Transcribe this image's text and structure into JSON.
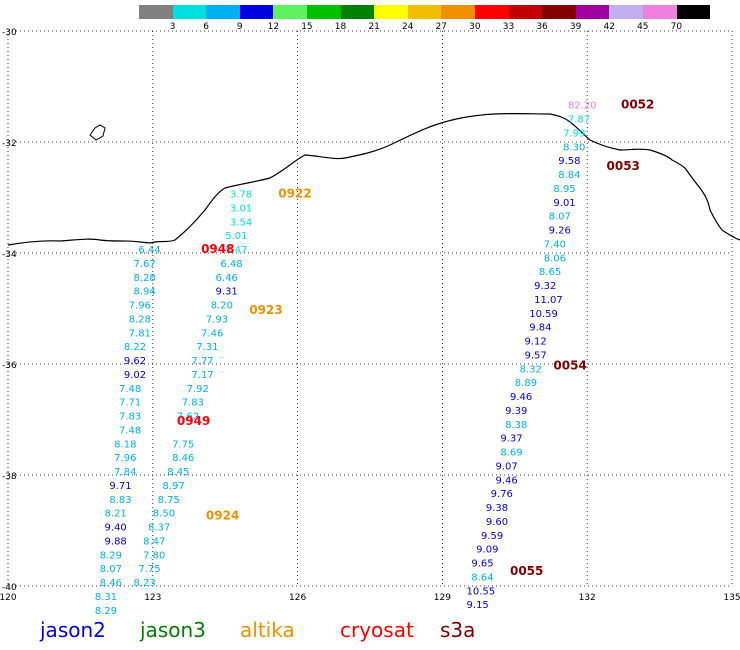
{
  "colorbar": {
    "colors": [
      "#808080",
      "#00e0e0",
      "#00b0f0",
      "#0000e0",
      "#60f060",
      "#00c000",
      "#008000",
      "#ffff00",
      "#f0c000",
      "#f09000",
      "#ff0000",
      "#c00000",
      "#800000",
      "#a000a0",
      "#c0b0f0",
      "#f080e0",
      "#000000"
    ],
    "labels": [
      "3",
      "6",
      "9",
      "12",
      "15",
      "18",
      "21",
      "24",
      "27",
      "30",
      "33",
      "36",
      "39",
      "42",
      "45",
      "70"
    ]
  },
  "axes": {
    "x_ticks": [
      "120",
      "123",
      "126",
      "129",
      "132",
      "135"
    ],
    "y_ticks": [
      "-30",
      "-32",
      "-34",
      "-36",
      "-38",
      "-40"
    ],
    "lon_range": [
      120,
      135
    ],
    "lat_range": [
      -40,
      -30
    ],
    "grid": "dotted"
  },
  "track_labels": [
    {
      "text": "0922",
      "lon": 125.6,
      "lat": -33.0,
      "color": "#f09000"
    },
    {
      "text": "0923",
      "lon": 125.0,
      "lat": -35.1,
      "color": "#f09000"
    },
    {
      "text": "0924",
      "lon": 124.1,
      "lat": -38.8,
      "color": "#f09000"
    },
    {
      "text": "0948",
      "lon": 124.0,
      "lat": -34.0,
      "color": "#ff0000"
    },
    {
      "text": "0949",
      "lon": 123.5,
      "lat": -37.1,
      "color": "#ff0000"
    },
    {
      "text": "0052",
      "lon": 132.7,
      "lat": -31.4,
      "color": "#800000"
    },
    {
      "text": "0053",
      "lon": 132.4,
      "lat": -32.5,
      "color": "#800000"
    },
    {
      "text": "0054",
      "lon": 131.3,
      "lat": -36.1,
      "color": "#800000"
    },
    {
      "text": "0055",
      "lon": 130.4,
      "lat": -39.8,
      "color": "#800000"
    }
  ],
  "value_labels": [
    {
      "text": "3.78",
      "lon": 124.6,
      "lat": -33.0,
      "color": "#00e0e0"
    },
    {
      "text": "3.01",
      "lon": 124.6,
      "lat": -33.25,
      "color": "#00e0e0"
    },
    {
      "text": "3.54",
      "lon": 124.6,
      "lat": -33.5,
      "color": "#00e0e0"
    },
    {
      "text": "5.01",
      "lon": 124.5,
      "lat": -33.75,
      "color": "#00e0e0"
    },
    {
      "text": "5.47",
      "lon": 124.5,
      "lat": -34.0,
      "color": "#00e0e0"
    },
    {
      "text": "6.48",
      "lon": 124.4,
      "lat": -34.25,
      "color": "#00b0f0"
    },
    {
      "text": "6.46",
      "lon": 124.3,
      "lat": -34.5,
      "color": "#00b0f0"
    },
    {
      "text": "9.31",
      "lon": 124.3,
      "lat": -34.75,
      "color": "#0000e0"
    },
    {
      "text": "8.20",
      "lon": 124.2,
      "lat": -35.0,
      "color": "#00b0f0"
    },
    {
      "text": "7.93",
      "lon": 124.1,
      "lat": -35.25,
      "color": "#00b0f0"
    },
    {
      "text": "7.46",
      "lon": 124.0,
      "lat": -35.5,
      "color": "#00b0f0"
    },
    {
      "text": "7.31",
      "lon": 123.9,
      "lat": -35.75,
      "color": "#00b0f0"
    },
    {
      "text": "7.77",
      "lon": 123.8,
      "lat": -36.0,
      "color": "#00b0f0"
    },
    {
      "text": "7.17",
      "lon": 123.8,
      "lat": -36.25,
      "color": "#00b0f0"
    },
    {
      "text": "7.92",
      "lon": 123.7,
      "lat": -36.5,
      "color": "#00b0f0"
    },
    {
      "text": "7.83",
      "lon": 123.6,
      "lat": -36.75,
      "color": "#00b0f0"
    },
    {
      "text": "7.62",
      "lon": 123.5,
      "lat": -37.0,
      "color": "#00b0f0"
    },
    {
      "text": "7.75",
      "lon": 123.4,
      "lat": -37.5,
      "color": "#00b0f0"
    },
    {
      "text": "8.46",
      "lon": 123.4,
      "lat": -37.75,
      "color": "#00b0f0"
    },
    {
      "text": "8.45",
      "lon": 123.3,
      "lat": -38.0,
      "color": "#00b0f0"
    },
    {
      "text": "8.97",
      "lon": 123.2,
      "lat": -38.25,
      "color": "#00b0f0"
    },
    {
      "text": "8.75",
      "lon": 123.1,
      "lat": -38.5,
      "color": "#00b0f0"
    },
    {
      "text": "8.50",
      "lon": 123.0,
      "lat": -38.75,
      "color": "#00b0f0"
    },
    {
      "text": "8.37",
      "lon": 122.9,
      "lat": -39.0,
      "color": "#00b0f0"
    },
    {
      "text": "8.47",
      "lon": 122.8,
      "lat": -39.25,
      "color": "#00b0f0"
    },
    {
      "text": "7.80",
      "lon": 122.8,
      "lat": -39.5,
      "color": "#00b0f0"
    },
    {
      "text": "7.75",
      "lon": 122.7,
      "lat": -39.75,
      "color": "#00b0f0"
    },
    {
      "text": "8.23",
      "lon": 122.6,
      "lat": -40.0,
      "color": "#00b0f0"
    },
    {
      "text": "6.44",
      "lon": 122.7,
      "lat": -34.0,
      "color": "#00b0f0"
    },
    {
      "text": "7.67",
      "lon": 122.6,
      "lat": -34.25,
      "color": "#00b0f0"
    },
    {
      "text": "8.28",
      "lon": 122.6,
      "lat": -34.5,
      "color": "#00b0f0"
    },
    {
      "text": "8.94",
      "lon": 122.6,
      "lat": -34.75,
      "color": "#00b0f0"
    },
    {
      "text": "7.96",
      "lon": 122.5,
      "lat": -35.0,
      "color": "#00b0f0"
    },
    {
      "text": "8.28",
      "lon": 122.5,
      "lat": -35.25,
      "color": "#00b0f0"
    },
    {
      "text": "7.81",
      "lon": 122.5,
      "lat": -35.5,
      "color": "#00b0f0"
    },
    {
      "text": "8.22",
      "lon": 122.4,
      "lat": -35.75,
      "color": "#00b0f0"
    },
    {
      "text": "9.62",
      "lon": 122.4,
      "lat": -36.0,
      "color": "#0000e0"
    },
    {
      "text": "9.02",
      "lon": 122.4,
      "lat": -36.25,
      "color": "#0000e0"
    },
    {
      "text": "7.48",
      "lon": 122.3,
      "lat": -36.5,
      "color": "#00b0f0"
    },
    {
      "text": "7.71",
      "lon": 122.3,
      "lat": -36.75,
      "color": "#00b0f0"
    },
    {
      "text": "7.83",
      "lon": 122.3,
      "lat": -37.0,
      "color": "#00b0f0"
    },
    {
      "text": "7.48",
      "lon": 122.3,
      "lat": -37.25,
      "color": "#00b0f0"
    },
    {
      "text": "8.18",
      "lon": 122.2,
      "lat": -37.5,
      "color": "#00b0f0"
    },
    {
      "text": "7.96",
      "lon": 122.2,
      "lat": -37.75,
      "color": "#00b0f0"
    },
    {
      "text": "7.84",
      "lon": 122.2,
      "lat": -38.0,
      "color": "#00b0f0"
    },
    {
      "text": "9.71",
      "lon": 122.1,
      "lat": -38.25,
      "color": "#0000e0"
    },
    {
      "text": "8.83",
      "lon": 122.1,
      "lat": -38.5,
      "color": "#00b0f0"
    },
    {
      "text": "8.21",
      "lon": 122.0,
      "lat": -38.75,
      "color": "#00b0f0"
    },
    {
      "text": "9.40",
      "lon": 122.0,
      "lat": -39.0,
      "color": "#0000e0"
    },
    {
      "text": "9.88",
      "lon": 122.0,
      "lat": -39.25,
      "color": "#0000e0"
    },
    {
      "text": "8.29",
      "lon": 121.9,
      "lat": -39.5,
      "color": "#00b0f0"
    },
    {
      "text": "8.07",
      "lon": 121.9,
      "lat": -39.75,
      "color": "#00b0f0"
    },
    {
      "text": "8.46",
      "lon": 121.9,
      "lat": -40.0,
      "color": "#00b0f0"
    },
    {
      "text": "8.31",
      "lon": 121.8,
      "lat": -40.25,
      "color": "#00b0f0"
    },
    {
      "text": "8.29",
      "lon": 121.8,
      "lat": -40.5,
      "color": "#00b0f0"
    },
    {
      "text": "82.20",
      "lon": 131.6,
      "lat": -31.4,
      "color": "#f080e0"
    },
    {
      "text": "7.87",
      "lon": 131.6,
      "lat": -31.65,
      "color": "#00e0e0"
    },
    {
      "text": "7.99",
      "lon": 131.5,
      "lat": -31.9,
      "color": "#00e0e0"
    },
    {
      "text": "8.30",
      "lon": 131.5,
      "lat": -32.15,
      "color": "#00b0f0"
    },
    {
      "text": "9.58",
      "lon": 131.4,
      "lat": -32.4,
      "color": "#0000e0"
    },
    {
      "text": "8.84",
      "lon": 131.4,
      "lat": -32.65,
      "color": "#00b0f0"
    },
    {
      "text": "8.95",
      "lon": 131.3,
      "lat": -32.9,
      "color": "#00b0f0"
    },
    {
      "text": "9.01",
      "lon": 131.3,
      "lat": -33.15,
      "color": "#0000e0"
    },
    {
      "text": "8.07",
      "lon": 131.2,
      "lat": -33.4,
      "color": "#00b0f0"
    },
    {
      "text": "9.26",
      "lon": 131.2,
      "lat": -33.65,
      "color": "#0000e0"
    },
    {
      "text": "7.40",
      "lon": 131.1,
      "lat": -33.9,
      "color": "#00b0f0"
    },
    {
      "text": "8.06",
      "lon": 131.1,
      "lat": -34.15,
      "color": "#00b0f0"
    },
    {
      "text": "8.65",
      "lon": 131.0,
      "lat": -34.4,
      "color": "#00b0f0"
    },
    {
      "text": "9.32",
      "lon": 130.9,
      "lat": -34.65,
      "color": "#0000e0"
    },
    {
      "text": "11.07",
      "lon": 130.9,
      "lat": -34.9,
      "color": "#0000e0"
    },
    {
      "text": "10.59",
      "lon": 130.8,
      "lat": -35.15,
      "color": "#0000e0"
    },
    {
      "text": "9.84",
      "lon": 130.8,
      "lat": -35.4,
      "color": "#0000e0"
    },
    {
      "text": "9.12",
      "lon": 130.7,
      "lat": -35.65,
      "color": "#0000e0"
    },
    {
      "text": "9.57",
      "lon": 130.7,
      "lat": -35.9,
      "color": "#0000e0"
    },
    {
      "text": "8.32",
      "lon": 130.6,
      "lat": -36.15,
      "color": "#00b0f0"
    },
    {
      "text": "8.89",
      "lon": 130.5,
      "lat": -36.4,
      "color": "#00b0f0"
    },
    {
      "text": "9.46",
      "lon": 130.4,
      "lat": -36.65,
      "color": "#0000e0"
    },
    {
      "text": "9.39",
      "lon": 130.3,
      "lat": -36.9,
      "color": "#0000e0"
    },
    {
      "text": "8.38",
      "lon": 130.3,
      "lat": -37.15,
      "color": "#00b0f0"
    },
    {
      "text": "9.37",
      "lon": 130.2,
      "lat": -37.4,
      "color": "#0000e0"
    },
    {
      "text": "8.69",
      "lon": 130.2,
      "lat": -37.65,
      "color": "#00b0f0"
    },
    {
      "text": "9.07",
      "lon": 130.1,
      "lat": -37.9,
      "color": "#0000e0"
    },
    {
      "text": "9.46",
      "lon": 130.1,
      "lat": -38.15,
      "color": "#0000e0"
    },
    {
      "text": "9.76",
      "lon": 130.0,
      "lat": -38.4,
      "color": "#0000e0"
    },
    {
      "text": "9.38",
      "lon": 129.9,
      "lat": -38.65,
      "color": "#0000e0"
    },
    {
      "text": "9.60",
      "lon": 129.9,
      "lat": -38.9,
      "color": "#0000e0"
    },
    {
      "text": "9.59",
      "lon": 129.8,
      "lat": -39.15,
      "color": "#0000e0"
    },
    {
      "text": "9.09",
      "lon": 129.7,
      "lat": -39.4,
      "color": "#0000e0"
    },
    {
      "text": "9.65",
      "lon": 129.6,
      "lat": -39.65,
      "color": "#0000e0"
    },
    {
      "text": "8.64",
      "lon": 129.6,
      "lat": -39.9,
      "color": "#00b0f0"
    },
    {
      "text": "10.55",
      "lon": 129.5,
      "lat": -40.15,
      "color": "#0000e0"
    },
    {
      "text": "9.15",
      "lon": 129.5,
      "lat": -40.4,
      "color": "#0000e0"
    }
  ],
  "legend": [
    {
      "text": "jason2",
      "color": "#0000e0"
    },
    {
      "text": "jason3",
      "color": "#008000"
    },
    {
      "text": "altika",
      "color": "#f09000"
    },
    {
      "text": "cryosat",
      "color": "#ff0000"
    },
    {
      "text": "s3a",
      "color": "#800000"
    }
  ]
}
